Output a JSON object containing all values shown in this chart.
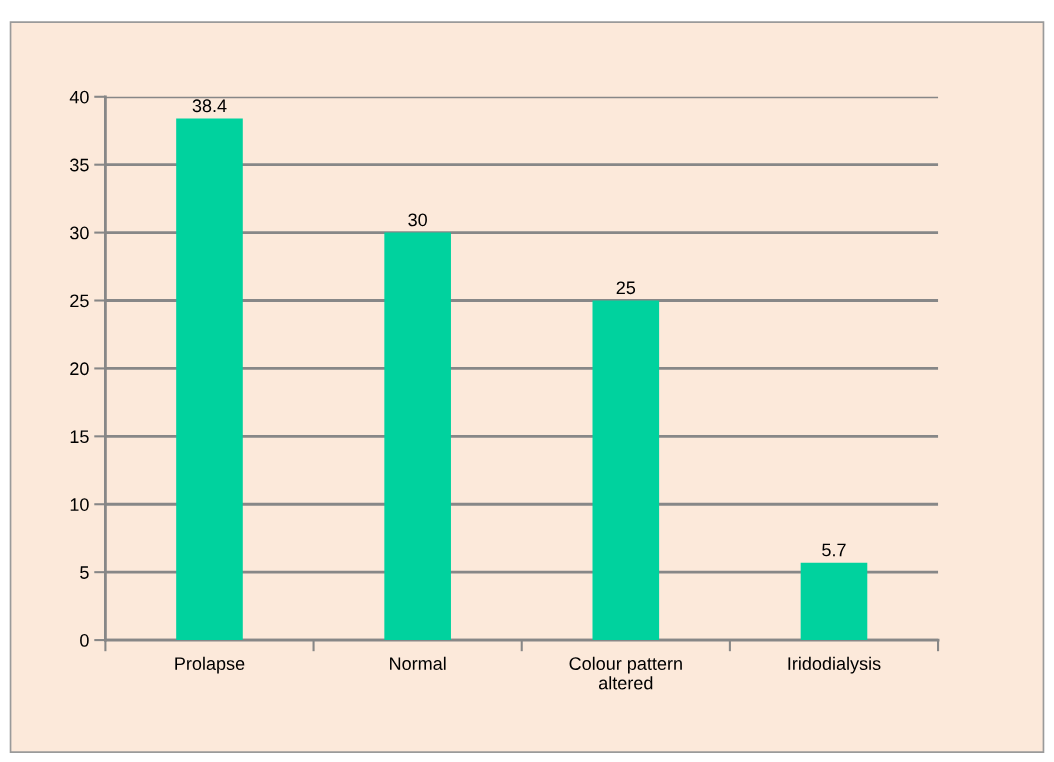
{
  "chart_data": {
    "type": "bar",
    "categories": [
      "Prolapse",
      "Normal",
      "Colour pattern altered",
      "Iridodialysis"
    ],
    "values": [
      38.4,
      30,
      25,
      5.7
    ],
    "color": "#00d29e",
    "ylim": [
      0,
      40
    ],
    "yticks": [
      0,
      5,
      10,
      15,
      20,
      25,
      30,
      35,
      40
    ],
    "grid": "y",
    "data_labels": true,
    "legend": false
  }
}
